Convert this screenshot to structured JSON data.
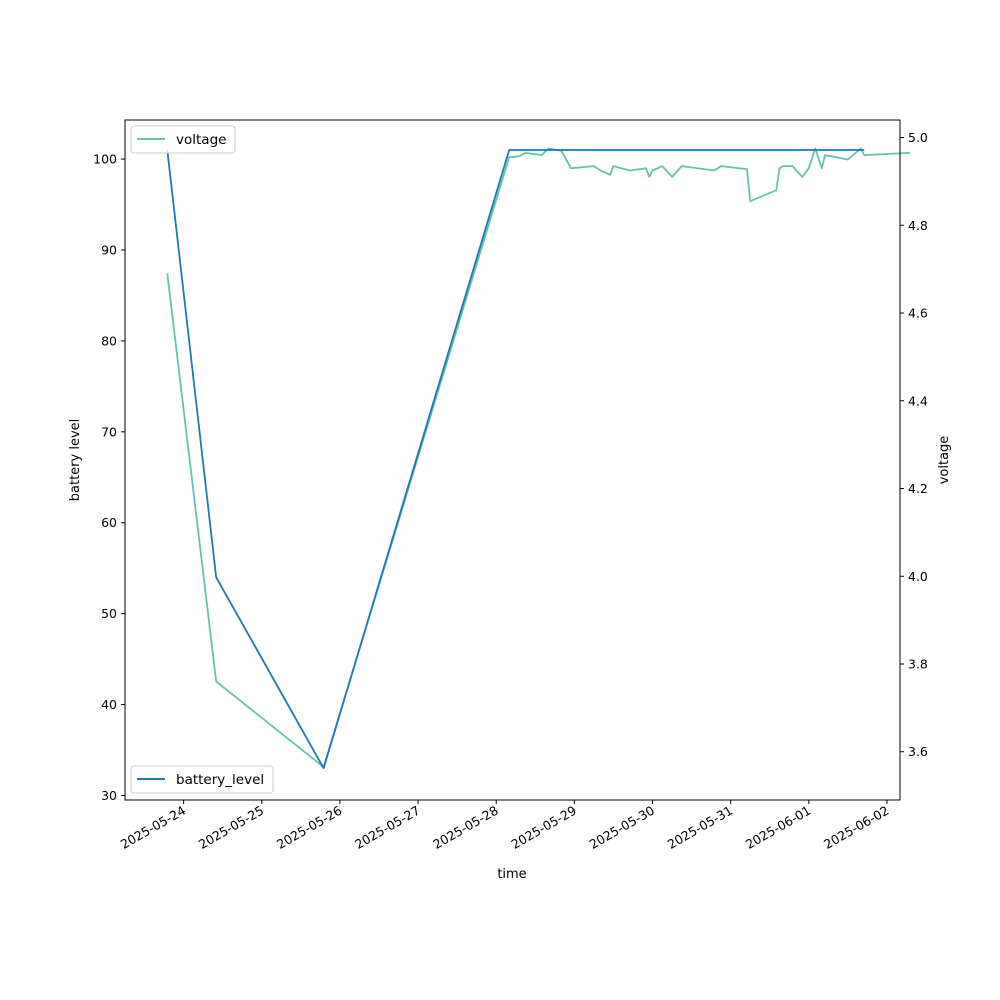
{
  "chart_data": {
    "type": "line",
    "xlabel": "time",
    "x_ticks": [
      "2025-05-24",
      "2025-05-25",
      "2025-05-26",
      "2025-05-27",
      "2025-05-28",
      "2025-05-29",
      "2025-05-30",
      "2025-05-31",
      "2025-06-01",
      "2025-06-02"
    ],
    "xlim": [
      "2025-05-23T06:00",
      "2025-06-02T04:00"
    ],
    "left_axis": {
      "label": "battery level",
      "ylim": [
        29.5,
        104.3
      ],
      "ticks": [
        30,
        40,
        50,
        60,
        70,
        80,
        90,
        100
      ]
    },
    "right_axis": {
      "label": "voltage",
      "ylim": [
        3.49,
        5.04
      ],
      "ticks": [
        3.6,
        3.8,
        4.0,
        4.2,
        4.4,
        4.6,
        4.8,
        5.0
      ]
    },
    "series": [
      {
        "name": "battery_level",
        "axis": "left",
        "color": "#1f77b4",
        "legend_position": "lower-left",
        "points": [
          [
            "2025-05-23T19:00",
            101
          ],
          [
            "2025-05-24T10:00",
            54
          ],
          [
            "2025-05-25T19:00",
            33
          ],
          [
            "2025-05-28T04:00",
            101
          ],
          [
            "2025-06-01T17:00",
            101
          ]
        ]
      },
      {
        "name": "voltage",
        "axis": "right",
        "color": "#66c2a5",
        "legend_position": "upper-left",
        "points": [
          [
            "2025-05-23T19:00",
            4.69
          ],
          [
            "2025-05-24T10:00",
            3.76
          ],
          [
            "2025-05-25T19:00",
            3.565
          ],
          [
            "2025-05-28T04:00",
            4.955
          ],
          [
            "2025-05-28T07:00",
            4.957
          ],
          [
            "2025-05-28T09:00",
            4.965
          ],
          [
            "2025-05-28T14:00",
            4.96
          ],
          [
            "2025-05-28T16:00",
            4.975
          ],
          [
            "2025-05-28T20:00",
            4.97
          ],
          [
            "2025-05-28T23:00",
            4.93
          ],
          [
            "2025-05-29T06:00",
            4.935
          ],
          [
            "2025-05-29T08:00",
            4.925
          ],
          [
            "2025-05-29T11:00",
            4.915
          ],
          [
            "2025-05-29T12:00",
            4.935
          ],
          [
            "2025-05-29T17:00",
            4.925
          ],
          [
            "2025-05-29T22:00",
            4.93
          ],
          [
            "2025-05-29T23:00",
            4.91
          ],
          [
            "2025-05-30T00:00",
            4.925
          ],
          [
            "2025-05-30T03:00",
            4.935
          ],
          [
            "2025-05-30T06:00",
            4.91
          ],
          [
            "2025-05-30T09:00",
            4.935
          ],
          [
            "2025-05-30T19:00",
            4.925
          ],
          [
            "2025-05-30T21:00",
            4.935
          ],
          [
            "2025-05-31T05:00",
            4.928
          ],
          [
            "2025-05-31T06:00",
            4.855
          ],
          [
            "2025-05-31T14:00",
            4.88
          ],
          [
            "2025-05-31T15:00",
            4.93
          ],
          [
            "2025-05-31T16:00",
            4.935
          ],
          [
            "2025-05-31T19:00",
            4.935
          ],
          [
            "2025-05-31T22:00",
            4.91
          ],
          [
            "2025-06-01T00:00",
            4.93
          ],
          [
            "2025-06-01T02:00",
            4.975
          ],
          [
            "2025-06-01T04:00",
            4.93
          ],
          [
            "2025-06-01T05:00",
            4.96
          ],
          [
            "2025-06-01T12:00",
            4.95
          ],
          [
            "2025-06-01T16:00",
            4.975
          ],
          [
            "2025-06-01T17:00",
            4.96
          ],
          [
            "2025-06-02T07:00",
            4.965
          ]
        ]
      }
    ]
  }
}
